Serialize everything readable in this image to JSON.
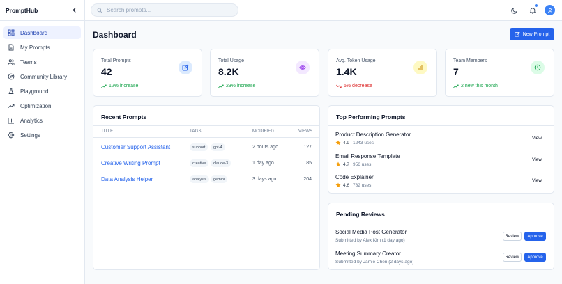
{
  "app": {
    "name": "PromptHub"
  },
  "colors": {
    "primary": "#2563eb",
    "success": "#16a34a",
    "danger": "#dc2626",
    "star": "#f59e0b"
  },
  "sidebar": {
    "items": [
      {
        "label": "Dashboard",
        "icon": "grid-icon",
        "active": true
      },
      {
        "label": "My Prompts",
        "icon": "document-icon"
      },
      {
        "label": "Teams",
        "icon": "users-icon"
      },
      {
        "label": "Community Library",
        "icon": "compass-icon"
      },
      {
        "label": "Playground",
        "icon": "flask-icon"
      },
      {
        "label": "Optimization",
        "icon": "trending-up-icon"
      },
      {
        "label": "Analytics",
        "icon": "bar-chart-icon"
      },
      {
        "label": "Settings",
        "icon": "gear-icon"
      }
    ]
  },
  "header": {
    "search_placeholder": "Search prompts...",
    "icons": [
      "moon-icon",
      "bell-icon",
      "user-avatar-icon"
    ]
  },
  "main": {
    "title": "Dashboard",
    "new_prompt_label": "New Prompt",
    "stats": [
      {
        "label": "Total Prompts",
        "value": "42",
        "change": "12% increase",
        "trend": "up",
        "icon": "edit-icon"
      },
      {
        "label": "Total Usage",
        "value": "8.2K",
        "change": "23% increase",
        "trend": "up",
        "icon": "eye-icon"
      },
      {
        "label": "Avg. Token Usage",
        "value": "1.4K",
        "change": "5% decrease",
        "trend": "down",
        "icon": "bar-chart-icon"
      },
      {
        "label": "Team Members",
        "value": "7",
        "change": "2 new this month",
        "trend": "up",
        "icon": "clock-icon"
      }
    ],
    "recent": {
      "title": "Recent Prompts",
      "columns": [
        "TITLE",
        "TAGS",
        "MODIFIED",
        "VIEWS"
      ],
      "rows": [
        {
          "title": "Customer Support Assistant",
          "tags": [
            "support",
            "gpt-4"
          ],
          "modified": "2 hours ago",
          "views": "127"
        },
        {
          "title": "Creative Writing Prompt",
          "tags": [
            "creative",
            "claude-3"
          ],
          "modified": "1 day ago",
          "views": "85"
        },
        {
          "title": "Data Analysis Helper",
          "tags": [
            "analysis",
            "gemini"
          ],
          "modified": "3 days ago",
          "views": "204"
        }
      ]
    },
    "top": {
      "title": "Top Performing Prompts",
      "view_label": "View",
      "items": [
        {
          "name": "Product Description Generator",
          "rating": "4.9",
          "uses": "1243 uses"
        },
        {
          "name": "Email Response Template",
          "rating": "4.7",
          "uses": "956 uses"
        },
        {
          "name": "Code Explainer",
          "rating": "4.6",
          "uses": "782 uses"
        }
      ]
    },
    "reviews": {
      "title": "Pending Reviews",
      "review_label": "Review",
      "approve_label": "Approve",
      "items": [
        {
          "name": "Social Media Post Generator",
          "submitted": "Submitted by Alex Kim (1 day ago)"
        },
        {
          "name": "Meeting Summary Creator",
          "submitted": "Submitted by Jamie Chen (2 days ago)"
        }
      ]
    }
  }
}
